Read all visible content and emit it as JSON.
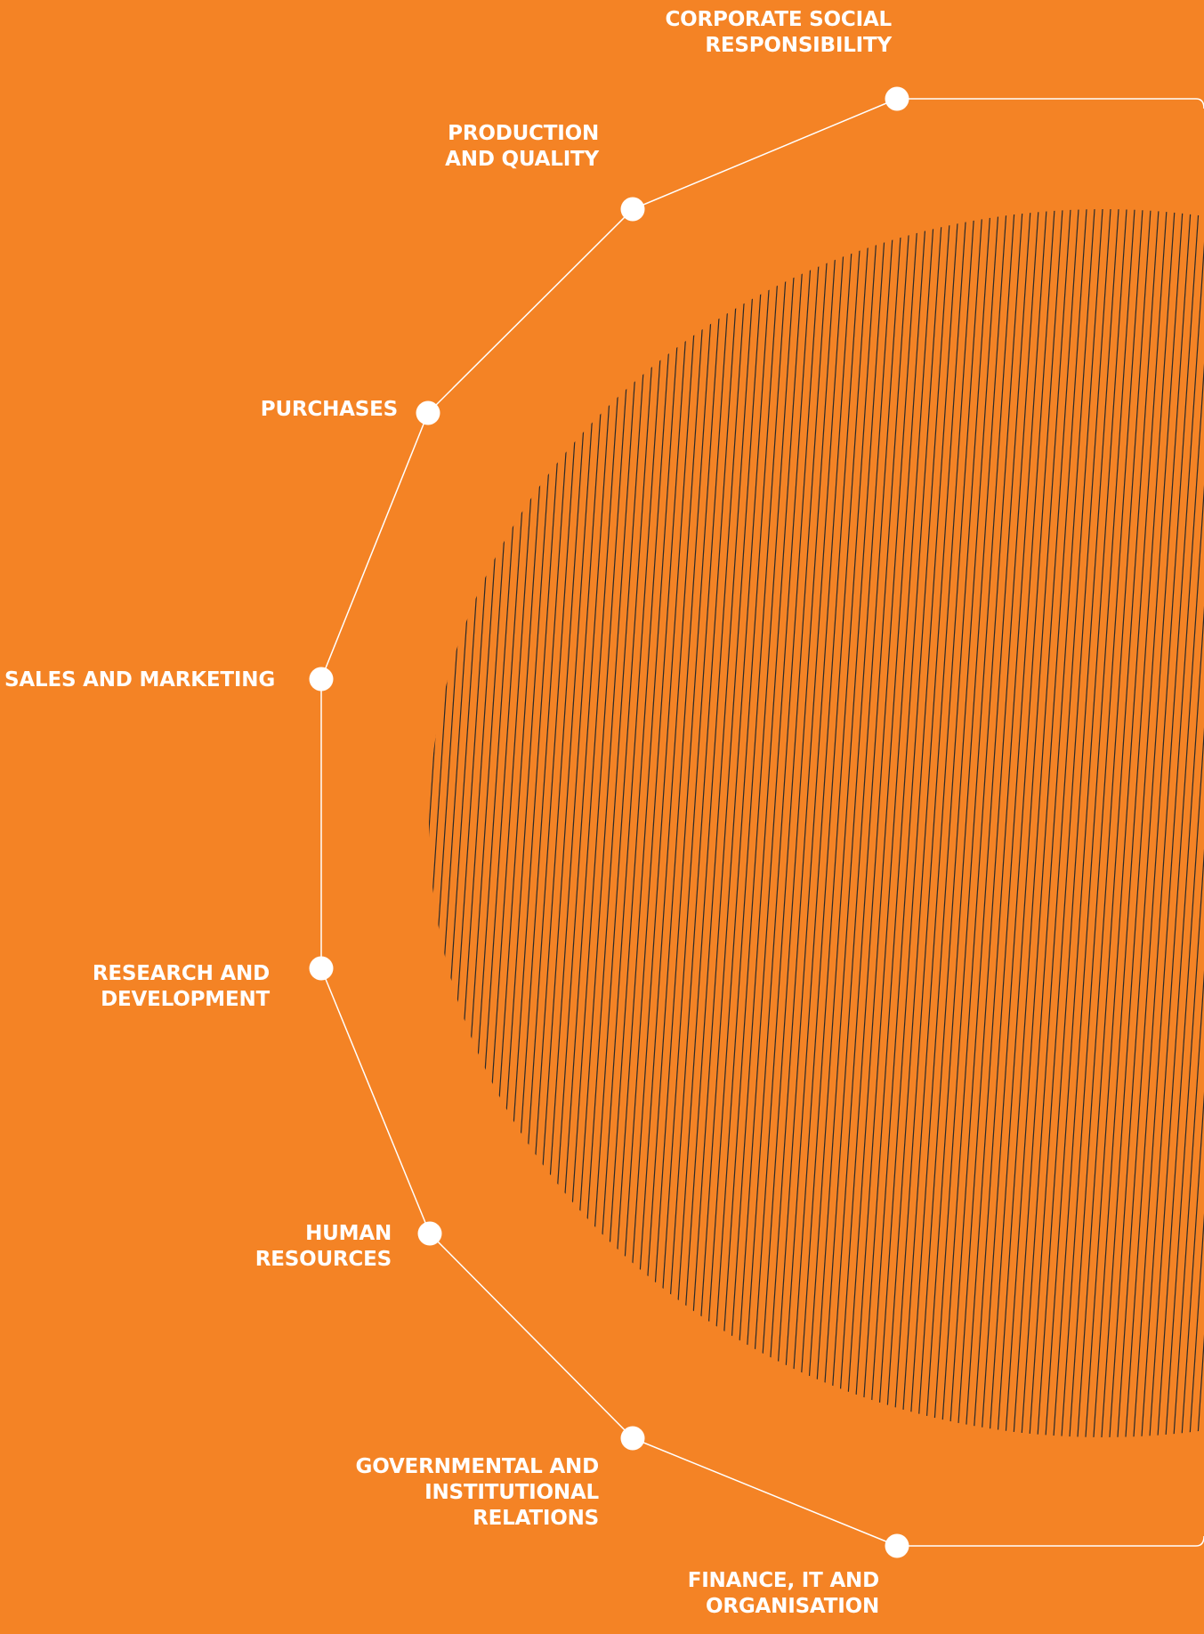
{
  "colors": {
    "background": "#f48325",
    "lines": "#ffffff",
    "nodes": "#ffffff",
    "hatch": "#2a2a2a"
  },
  "diagram": {
    "type": "circular process / functional areas",
    "nodes": [
      {
        "id": "corporate-social-responsibility",
        "label_lines": [
          "CORPORATE SOCIAL",
          "RESPONSIBILITY"
        ]
      },
      {
        "id": "production-and-quality",
        "label_lines": [
          "PRODUCTION",
          "AND QUALITY"
        ]
      },
      {
        "id": "purchases",
        "label_lines": [
          "PURCHASES"
        ]
      },
      {
        "id": "sales-and-marketing",
        "label_lines": [
          "SALES AND MARKETING"
        ]
      },
      {
        "id": "research-and-development",
        "label_lines": [
          "RESEARCH AND",
          "DEVELOPMENT"
        ]
      },
      {
        "id": "human-resources",
        "label_lines": [
          "HUMAN",
          "RESOURCES"
        ]
      },
      {
        "id": "governmental-and-institutional-relations",
        "label_lines": [
          "GOVERNMENTAL AND",
          "INSTITUTIONAL",
          "RELATIONS"
        ]
      },
      {
        "id": "finance-it-and-organisation",
        "label_lines": [
          "FINANCE, IT AND",
          "ORGANISATION"
        ]
      }
    ]
  }
}
